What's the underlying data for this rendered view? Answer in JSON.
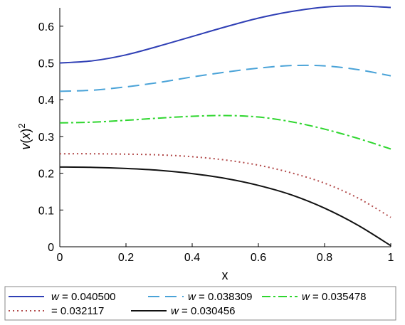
{
  "chart_data": {
    "type": "line",
    "title": "",
    "xlabel": "x",
    "ylabel_parts": {
      "v": "v",
      "open": "(",
      "x": "x",
      "close": ")",
      "sup": "2"
    },
    "xlim": [
      0,
      1
    ],
    "ylim": [
      0,
      0.65
    ],
    "xticks": [
      {
        "value": 0,
        "label": "0"
      },
      {
        "value": 0.2,
        "label": "0.2"
      },
      {
        "value": 0.4,
        "label": "0.4"
      },
      {
        "value": 0.6,
        "label": "0.6"
      },
      {
        "value": 0.8,
        "label": "0.8"
      },
      {
        "value": 1,
        "label": "1"
      }
    ],
    "yticks": [
      {
        "value": 0,
        "label": "0"
      },
      {
        "value": 0.1,
        "label": "0.1"
      },
      {
        "value": 0.2,
        "label": "0.2"
      },
      {
        "value": 0.3,
        "label": "0.3"
      },
      {
        "value": 0.4,
        "label": "0.4"
      },
      {
        "value": 0.5,
        "label": "0.5"
      },
      {
        "value": 0.6,
        "label": "0.6"
      }
    ],
    "grid": false,
    "legend_position": "bottom",
    "series": [
      {
        "legend_var": "w",
        "legend_value": " = 0.040500",
        "color": "#2f3fb5",
        "dash": "",
        "x": [
          0,
          0.1,
          0.2,
          0.3,
          0.4,
          0.5,
          0.6,
          0.7,
          0.8,
          0.9,
          1.0
        ],
        "y": [
          0.5,
          0.506,
          0.522,
          0.546,
          0.572,
          0.598,
          0.622,
          0.64,
          0.652,
          0.655,
          0.651
        ]
      },
      {
        "legend_var": "w",
        "legend_value": " = 0.038309",
        "color": "#4aa3d8",
        "dash": "16,8",
        "x": [
          0,
          0.1,
          0.2,
          0.3,
          0.4,
          0.5,
          0.6,
          0.7,
          0.8,
          0.9,
          1.0
        ],
        "y": [
          0.423,
          0.426,
          0.435,
          0.447,
          0.462,
          0.475,
          0.486,
          0.493,
          0.492,
          0.482,
          0.465
        ]
      },
      {
        "legend_var": "w",
        "legend_value": " = 0.035478",
        "color": "#2ed62e",
        "dash": "12,4,3,4",
        "x": [
          0,
          0.1,
          0.2,
          0.3,
          0.4,
          0.5,
          0.6,
          0.7,
          0.8,
          0.9,
          1.0
        ],
        "y": [
          0.337,
          0.339,
          0.344,
          0.35,
          0.355,
          0.357,
          0.353,
          0.34,
          0.32,
          0.295,
          0.266
        ]
      },
      {
        "legend_var": "",
        "legend_value": "= 0.032117",
        "color": "#b24a4a",
        "dash": "2,4",
        "x": [
          0,
          0.1,
          0.2,
          0.3,
          0.4,
          0.5,
          0.6,
          0.7,
          0.8,
          0.9,
          1.0
        ],
        "y": [
          0.253,
          0.253,
          0.252,
          0.25,
          0.245,
          0.236,
          0.222,
          0.201,
          0.173,
          0.133,
          0.08
        ]
      },
      {
        "legend_var": "w",
        "legend_value": " = 0.030456",
        "color": "#111111",
        "dash": "",
        "x": [
          0,
          0.1,
          0.2,
          0.3,
          0.4,
          0.5,
          0.6,
          0.7,
          0.8,
          0.9,
          1.0
        ],
        "y": [
          0.217,
          0.216,
          0.213,
          0.208,
          0.199,
          0.186,
          0.167,
          0.141,
          0.105,
          0.059,
          0.003
        ]
      }
    ]
  }
}
